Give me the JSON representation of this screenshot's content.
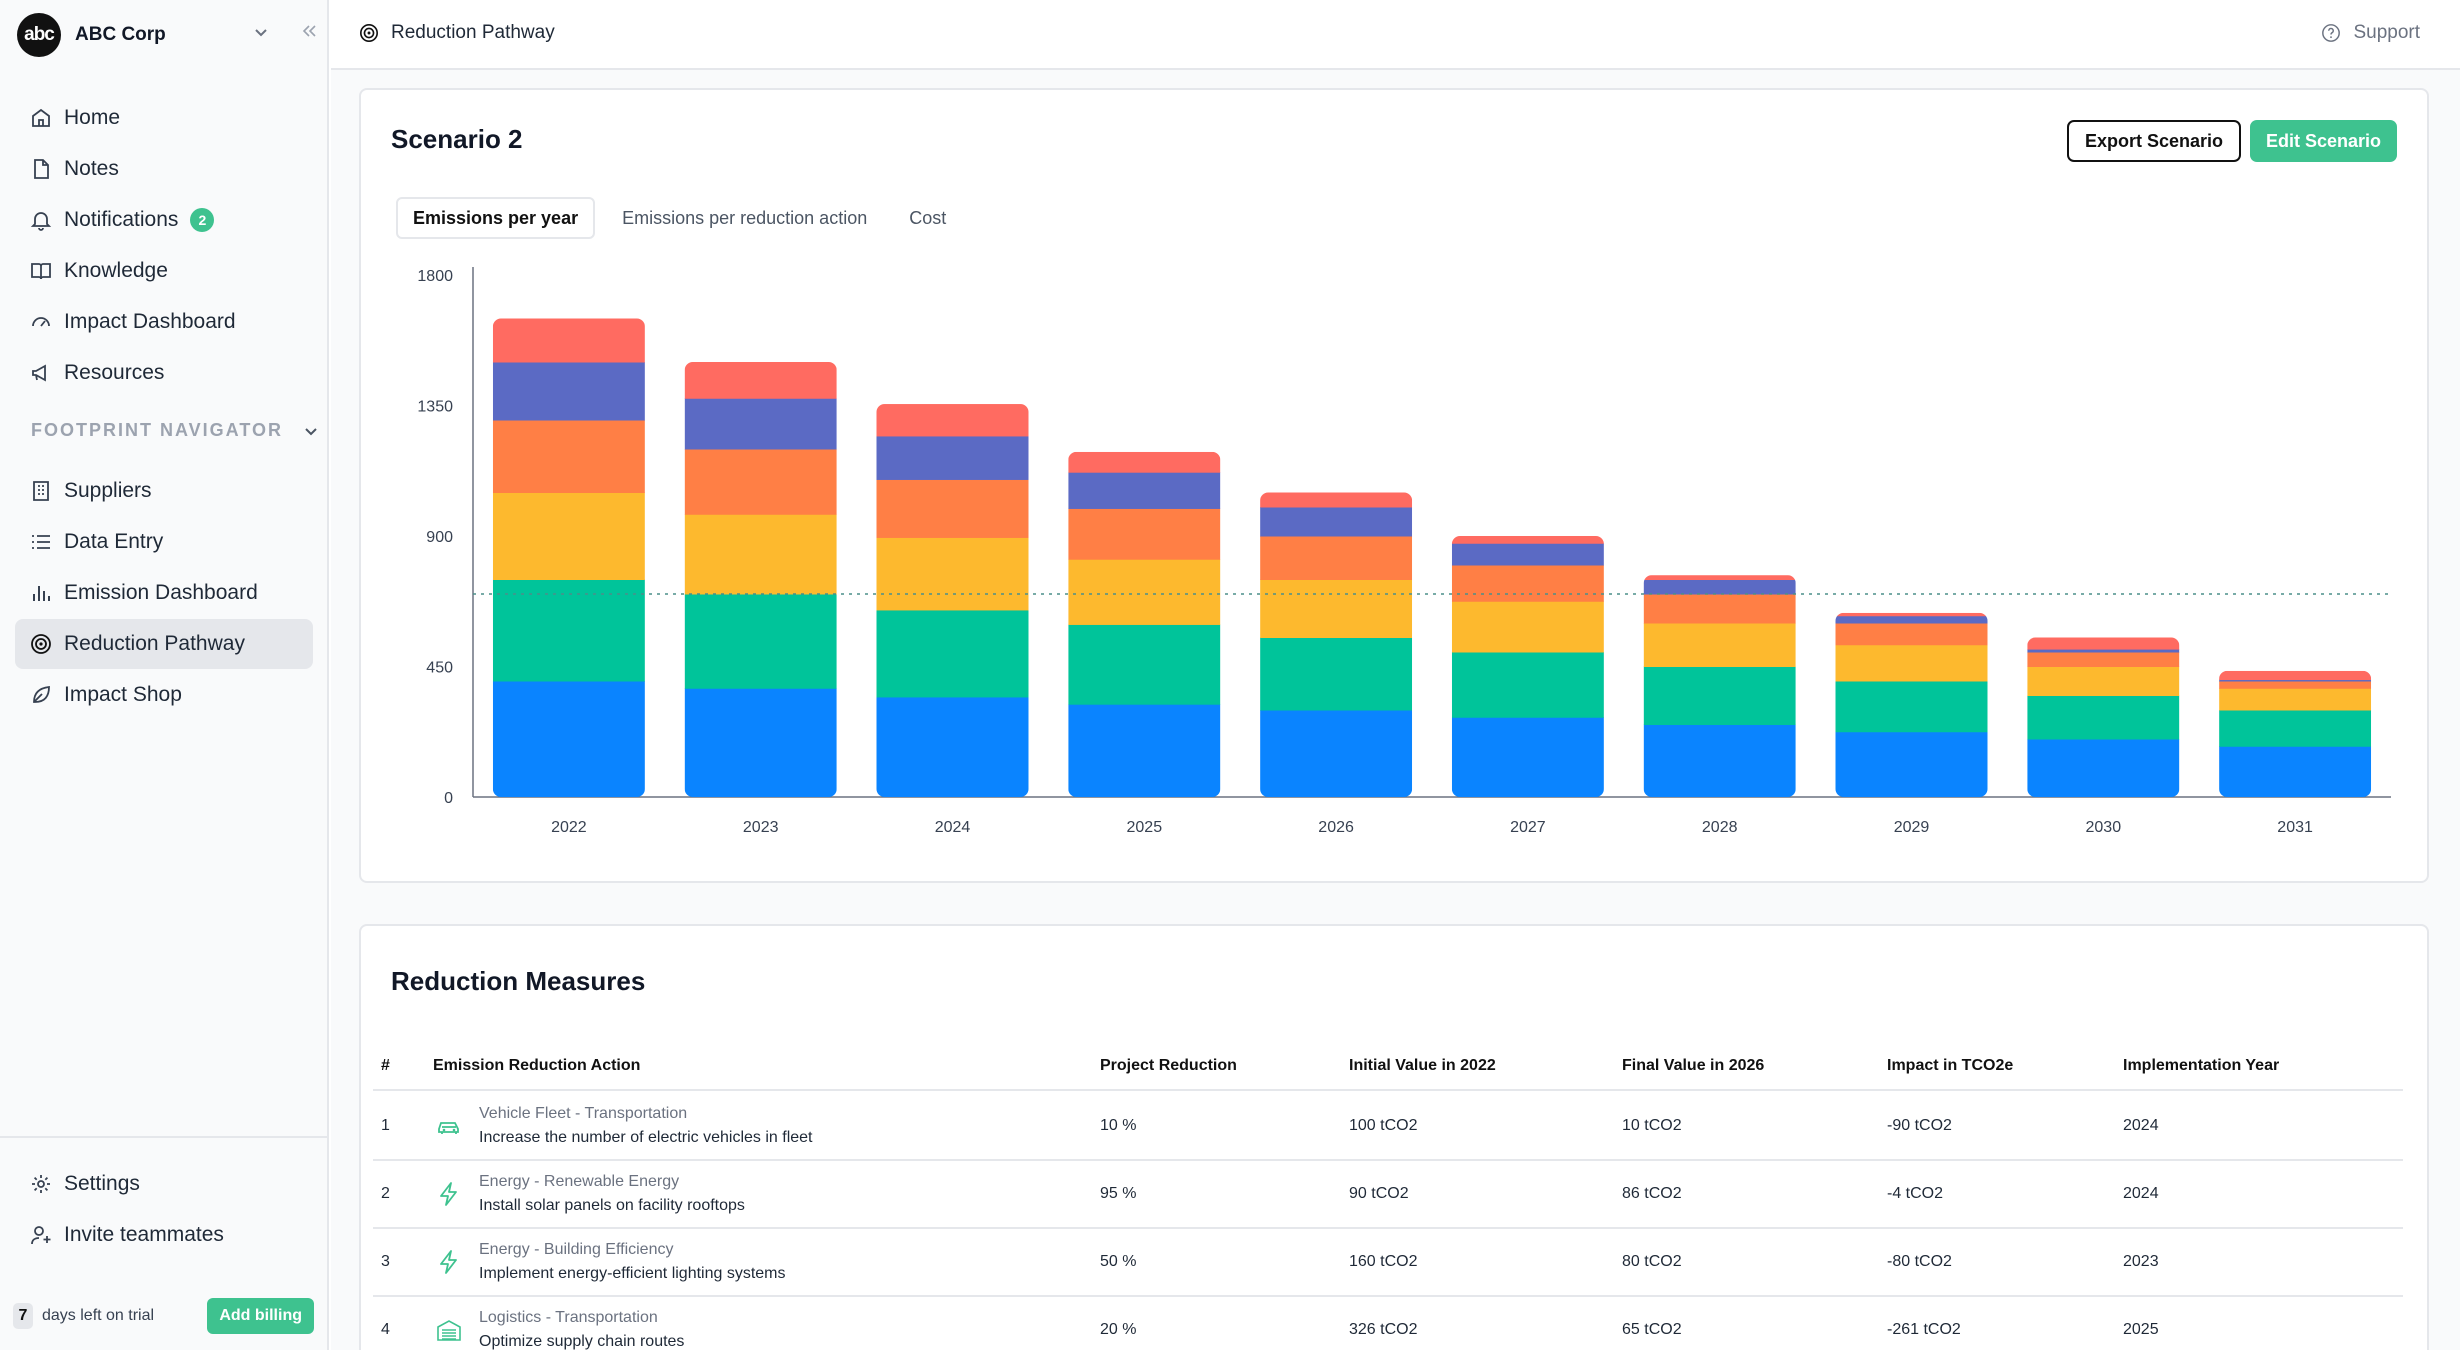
{
  "org": {
    "logo_text": "abc",
    "name": "ABC Corp"
  },
  "nav": {
    "home": "Home",
    "notes": "Notes",
    "notifications": "Notifications",
    "notifications_count": "2",
    "knowledge": "Knowledge",
    "impact_dashboard": "Impact Dashboard",
    "resources": "Resources",
    "section": "FOOTPRINT NAVIGATOR",
    "suppliers": "Suppliers",
    "data_entry": "Data Entry",
    "emission_dashboard": "Emission Dashboard",
    "reduction_pathway": "Reduction Pathway",
    "impact_shop": "Impact Shop",
    "settings": "Settings",
    "invite": "Invite teammates"
  },
  "trial": {
    "days": "7",
    "text": "days left on trial",
    "billing_label": "Add billing"
  },
  "header": {
    "breadcrumb": "Reduction Pathway",
    "support": "Support"
  },
  "scenario": {
    "title": "Scenario 2",
    "export_label": "Export Scenario",
    "edit_label": "Edit Scenario",
    "tabs": [
      "Emissions per year",
      "Emissions per reduction action",
      "Cost"
    ]
  },
  "chart_data": {
    "type": "bar",
    "stacked": true,
    "categories": [
      "2022",
      "2023",
      "2024",
      "2025",
      "2026",
      "2027",
      "2028",
      "2029",
      "2030",
      "2031"
    ],
    "ylim": [
      0,
      1800
    ],
    "yticks": [
      0,
      450,
      900,
      1350,
      1800
    ],
    "target_line": 700,
    "grid": false,
    "colors": [
      "#0a84ff",
      "#00c49a",
      "#fdb92e",
      "#ff7f45",
      "#5b6ac4",
      "#ff6b61"
    ],
    "series": [
      {
        "values": [
          400,
          375,
          345,
          320,
          300,
          275,
          250,
          225,
          200,
          175
        ]
      },
      {
        "values": [
          350,
          325,
          300,
          275,
          250,
          225,
          200,
          175,
          150,
          125
        ]
      },
      {
        "values": [
          300,
          275,
          250,
          225,
          200,
          175,
          150,
          125,
          100,
          75
        ]
      },
      {
        "values": [
          250,
          225,
          200,
          175,
          150,
          125,
          100,
          75,
          50,
          25
        ]
      },
      {
        "values": [
          200,
          175,
          150,
          125,
          100,
          75,
          50,
          25,
          10,
          5
        ]
      },
      {
        "values": [
          150,
          125,
          110,
          70,
          50,
          25,
          15,
          10,
          40,
          30
        ]
      }
    ]
  },
  "measures": {
    "title": "Reduction Measures",
    "headers": [
      "#",
      "Emission Reduction Action",
      "Project Reduction",
      "Initial Value in 2022",
      "Final Value in 2026",
      "Impact in TCO2e",
      "Implementation Year"
    ],
    "rows": [
      {
        "num": "1",
        "icon": "car-icon",
        "category": "Vehicle Fleet - Transportation",
        "desc": "Increase the number of electric vehicles in fleet",
        "reduction": "10 %",
        "initial": "100 tCO2",
        "final": "10 tCO2",
        "impact": "-90 tCO2",
        "year": "2024"
      },
      {
        "num": "2",
        "icon": "lightning-icon",
        "category": "Energy - Renewable Energy",
        "desc": "Install solar panels on facility rooftops",
        "reduction": "95 %",
        "initial": "90 tCO2",
        "final": "86 tCO2",
        "impact": "-4 tCO2",
        "year": "2024"
      },
      {
        "num": "3",
        "icon": "lightning-icon",
        "category": "Energy - Building Efficiency",
        "desc": "Implement energy-efficient lighting systems",
        "reduction": "50 %",
        "initial": "160 tCO2",
        "final": "80 tCO2",
        "impact": "-80 tCO2",
        "year": "2023"
      },
      {
        "num": "4",
        "icon": "warehouse-icon",
        "category": "Logistics - Transportation",
        "desc": "Optimize supply chain routes",
        "reduction": "20 %",
        "initial": "326 tCO2",
        "final": "65 tCO2",
        "impact": "-261 tCO2",
        "year": "2025"
      }
    ]
  }
}
